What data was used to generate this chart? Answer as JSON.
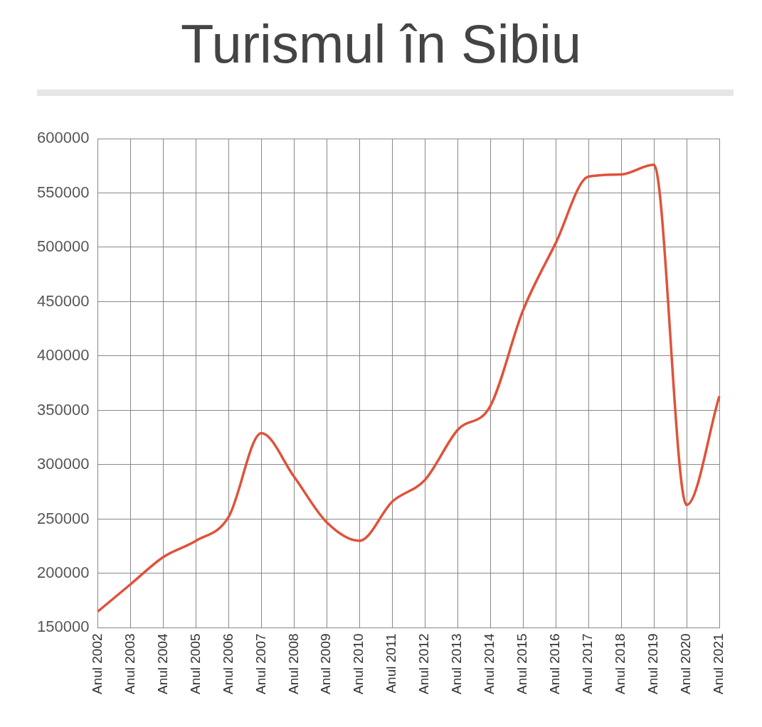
{
  "chart_data": {
    "type": "line",
    "title": "Turismul în Sibiu",
    "categories": [
      "Anul 2002",
      "Anul 2003",
      "Anul 2004",
      "Anul 2005",
      "Anul 2006",
      "Anul 2007",
      "Anul 2008",
      "Anul 2009",
      "Anul 2010",
      "Anul 2011",
      "Anul 2012",
      "Anul 2013",
      "Anul 2014",
      "Anul 2015",
      "Anul 2016",
      "Anul 2017",
      "Anul 2018",
      "Anul 2019",
      "Anul 2020",
      "Anul 2021"
    ],
    "series": [
      {
        "color": "#e0523a",
        "values": [
          165000,
          190000,
          215000,
          230000,
          252000,
          329000,
          289000,
          247000,
          230000,
          266000,
          286000,
          332000,
          354000,
          442000,
          504000,
          565000,
          567000,
          576000,
          263000,
          363000
        ]
      }
    ],
    "ylim": [
      150000,
      600000
    ],
    "yticks": [
      150000,
      200000,
      250000,
      300000,
      350000,
      400000,
      450000,
      500000,
      550000,
      600000
    ],
    "grid": true,
    "legend": false,
    "marker": "none",
    "line_style": "solid"
  }
}
